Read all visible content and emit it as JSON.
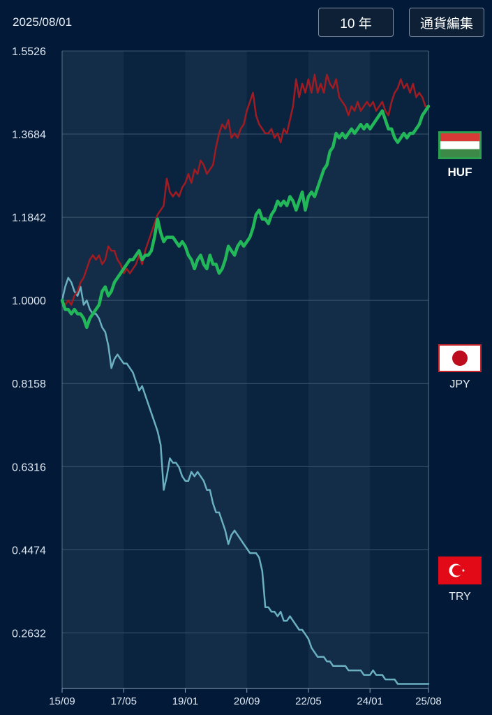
{
  "header": {
    "date": "2025/08/01",
    "period_button": "10 年",
    "edit_button": "通貨編集"
  },
  "colors": {
    "background": "#021a38",
    "HUF": "#a01c22",
    "JPY": "#22b85a",
    "TRY": "#6bb0c0",
    "grid": "#3c5670"
  },
  "legend": [
    {
      "code": "HUF",
      "icon": "hungary-flag-icon",
      "selected": true
    },
    {
      "code": "JPY",
      "icon": "japan-flag-icon",
      "selected": false
    },
    {
      "code": "TRY",
      "icon": "turkey-flag-icon",
      "selected": false
    }
  ],
  "chart_data": {
    "type": "line",
    "y_ticks": [
      "1.5526",
      "1.3684",
      "1.1842",
      "1.0000",
      "0.8158",
      "0.6316",
      "0.4474",
      "0.2632"
    ],
    "ylim": [
      0.14,
      1.5526
    ],
    "x_ticks": [
      "15/09",
      "17/05",
      "19/01",
      "20/09",
      "22/05",
      "24/01",
      "25/08"
    ],
    "x_tick_index": [
      0,
      20,
      40,
      60,
      80,
      100,
      119
    ],
    "grid": true,
    "series": [
      {
        "name": "HUF",
        "values": [
          1.0,
          0.99,
          1.0,
          0.99,
          1.01,
          1.02,
          1.04,
          1.05,
          1.07,
          1.09,
          1.1,
          1.09,
          1.1,
          1.08,
          1.09,
          1.12,
          1.11,
          1.11,
          1.09,
          1.08,
          1.06,
          1.07,
          1.06,
          1.07,
          1.08,
          1.1,
          1.08,
          1.11,
          1.13,
          1.15,
          1.17,
          1.19,
          1.2,
          1.21,
          1.27,
          1.24,
          1.23,
          1.24,
          1.23,
          1.25,
          1.26,
          1.28,
          1.26,
          1.29,
          1.28,
          1.31,
          1.3,
          1.28,
          1.29,
          1.3,
          1.34,
          1.37,
          1.39,
          1.38,
          1.4,
          1.36,
          1.37,
          1.36,
          1.38,
          1.39,
          1.42,
          1.44,
          1.46,
          1.41,
          1.39,
          1.38,
          1.37,
          1.37,
          1.38,
          1.36,
          1.37,
          1.35,
          1.38,
          1.37,
          1.4,
          1.43,
          1.49,
          1.45,
          1.48,
          1.46,
          1.49,
          1.46,
          1.5,
          1.46,
          1.48,
          1.46,
          1.5,
          1.48,
          1.47,
          1.49,
          1.45,
          1.44,
          1.43,
          1.41,
          1.43,
          1.42,
          1.44,
          1.42,
          1.43,
          1.44,
          1.43,
          1.44,
          1.42,
          1.43,
          1.44,
          1.42,
          1.41,
          1.44,
          1.46,
          1.47,
          1.49,
          1.47,
          1.48,
          1.46,
          1.48,
          1.45,
          1.46,
          1.45,
          1.43,
          1.43
        ]
      },
      {
        "name": "JPY",
        "values": [
          1.0,
          0.98,
          0.98,
          0.97,
          0.98,
          0.97,
          0.97,
          0.96,
          0.94,
          0.96,
          0.97,
          0.98,
          0.99,
          1.02,
          1.03,
          1.01,
          1.02,
          1.04,
          1.05,
          1.06,
          1.07,
          1.08,
          1.09,
          1.09,
          1.1,
          1.11,
          1.09,
          1.1,
          1.1,
          1.11,
          1.14,
          1.18,
          1.15,
          1.13,
          1.14,
          1.14,
          1.14,
          1.13,
          1.12,
          1.13,
          1.12,
          1.1,
          1.09,
          1.07,
          1.09,
          1.1,
          1.08,
          1.07,
          1.1,
          1.08,
          1.08,
          1.06,
          1.07,
          1.09,
          1.12,
          1.11,
          1.1,
          1.12,
          1.13,
          1.12,
          1.13,
          1.14,
          1.16,
          1.19,
          1.2,
          1.18,
          1.18,
          1.17,
          1.19,
          1.2,
          1.22,
          1.21,
          1.22,
          1.21,
          1.23,
          1.22,
          1.2,
          1.22,
          1.24,
          1.2,
          1.23,
          1.24,
          1.23,
          1.25,
          1.27,
          1.29,
          1.3,
          1.33,
          1.34,
          1.37,
          1.36,
          1.37,
          1.36,
          1.37,
          1.38,
          1.37,
          1.38,
          1.39,
          1.38,
          1.39,
          1.38,
          1.39,
          1.4,
          1.41,
          1.42,
          1.4,
          1.38,
          1.38,
          1.36,
          1.35,
          1.36,
          1.37,
          1.36,
          1.37,
          1.37,
          1.38,
          1.39,
          1.41,
          1.42,
          1.43
        ]
      },
      {
        "name": "TRY",
        "values": [
          1.0,
          1.03,
          1.05,
          1.04,
          1.02,
          1.01,
          1.03,
          0.99,
          1.0,
          0.98,
          0.97,
          0.97,
          0.96,
          0.94,
          0.93,
          0.9,
          0.85,
          0.87,
          0.88,
          0.87,
          0.86,
          0.86,
          0.85,
          0.84,
          0.82,
          0.8,
          0.81,
          0.79,
          0.77,
          0.75,
          0.73,
          0.71,
          0.68,
          0.58,
          0.61,
          0.65,
          0.64,
          0.64,
          0.63,
          0.61,
          0.6,
          0.6,
          0.62,
          0.61,
          0.62,
          0.61,
          0.6,
          0.58,
          0.58,
          0.55,
          0.53,
          0.53,
          0.51,
          0.49,
          0.46,
          0.48,
          0.49,
          0.48,
          0.47,
          0.46,
          0.45,
          0.44,
          0.44,
          0.44,
          0.43,
          0.4,
          0.32,
          0.32,
          0.31,
          0.31,
          0.3,
          0.31,
          0.29,
          0.29,
          0.3,
          0.29,
          0.28,
          0.27,
          0.27,
          0.26,
          0.25,
          0.23,
          0.22,
          0.21,
          0.21,
          0.21,
          0.2,
          0.2,
          0.19,
          0.19,
          0.19,
          0.19,
          0.19,
          0.18,
          0.18,
          0.18,
          0.18,
          0.18,
          0.17,
          0.17,
          0.17,
          0.18,
          0.17,
          0.17,
          0.17,
          0.16,
          0.16,
          0.16,
          0.16,
          0.15,
          0.15,
          0.15,
          0.15,
          0.15,
          0.15,
          0.15,
          0.15,
          0.15,
          0.15,
          0.15
        ]
      }
    ]
  }
}
